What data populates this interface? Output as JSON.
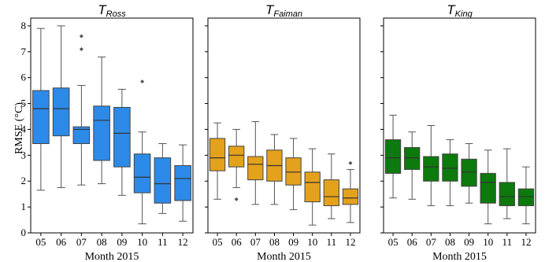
{
  "figure": {
    "y_axis_label": "RMSE (°C)",
    "x_axis_label": "Month 2015"
  },
  "chart_data": [
    {
      "type": "box",
      "title_main": "T",
      "title_sub": "Ross",
      "color": "#2d8ae8",
      "categories": [
        "05",
        "06",
        "07",
        "08",
        "09",
        "10",
        "11",
        "12"
      ],
      "ylim": [
        0,
        8.3
      ],
      "yticks": [
        0,
        1,
        2,
        3,
        4,
        5,
        6,
        7,
        8
      ],
      "boxes": [
        {
          "whisker_low": 1.65,
          "q1": 3.45,
          "median": 4.8,
          "q3": 5.5,
          "whisker_high": 7.9,
          "outliers": []
        },
        {
          "whisker_low": 1.75,
          "q1": 3.75,
          "median": 4.8,
          "q3": 5.6,
          "whisker_high": 8.0,
          "outliers": []
        },
        {
          "whisker_low": 1.85,
          "q1": 3.45,
          "median": 4.0,
          "q3": 4.1,
          "whisker_high": 5.7,
          "outliers": [
            7.1,
            7.6
          ]
        },
        {
          "whisker_low": 1.9,
          "q1": 2.8,
          "median": 4.35,
          "q3": 4.9,
          "whisker_high": 6.8,
          "outliers": []
        },
        {
          "whisker_low": 1.45,
          "q1": 2.55,
          "median": 3.85,
          "q3": 4.85,
          "whisker_high": 5.55,
          "outliers": []
        },
        {
          "whisker_low": 0.35,
          "q1": 1.55,
          "median": 2.15,
          "q3": 3.05,
          "whisker_high": 3.9,
          "outliers": [
            5.85
          ]
        },
        {
          "whisker_low": 0.75,
          "q1": 1.15,
          "median": 1.9,
          "q3": 2.9,
          "whisker_high": 3.45,
          "outliers": []
        },
        {
          "whisker_low": 0.45,
          "q1": 1.25,
          "median": 2.1,
          "q3": 2.6,
          "whisker_high": 3.4,
          "outliers": []
        }
      ]
    },
    {
      "type": "box",
      "title_main": "T",
      "title_sub": "Faiman",
      "color": "#e4a11b",
      "categories": [
        "05",
        "06",
        "07",
        "08",
        "09",
        "10",
        "11",
        "12"
      ],
      "ylim": [
        0,
        8.3
      ],
      "yticks": [
        0,
        1,
        2,
        3,
        4,
        5,
        6,
        7,
        8
      ],
      "boxes": [
        {
          "whisker_low": 1.3,
          "q1": 2.4,
          "median": 2.9,
          "q3": 3.65,
          "whisker_high": 4.25,
          "outliers": []
        },
        {
          "whisker_low": 1.75,
          "q1": 2.55,
          "median": 3.0,
          "q3": 3.35,
          "whisker_high": 4.0,
          "outliers": [
            1.3
          ]
        },
        {
          "whisker_low": 1.1,
          "q1": 2.05,
          "median": 2.65,
          "q3": 2.95,
          "whisker_high": 4.3,
          "outliers": []
        },
        {
          "whisker_low": 1.1,
          "q1": 2.0,
          "median": 2.6,
          "q3": 3.2,
          "whisker_high": 3.8,
          "outliers": []
        },
        {
          "whisker_low": 0.9,
          "q1": 1.85,
          "median": 2.35,
          "q3": 2.9,
          "whisker_high": 3.65,
          "outliers": []
        },
        {
          "whisker_low": 0.3,
          "q1": 1.2,
          "median": 1.95,
          "q3": 2.35,
          "whisker_high": 3.25,
          "outliers": []
        },
        {
          "whisker_low": 0.55,
          "q1": 1.05,
          "median": 1.4,
          "q3": 2.05,
          "whisker_high": 3.05,
          "outliers": []
        },
        {
          "whisker_low": 0.4,
          "q1": 1.1,
          "median": 1.35,
          "q3": 1.7,
          "whisker_high": 2.45,
          "outliers": [
            2.7
          ]
        }
      ]
    },
    {
      "type": "box",
      "title_main": "T",
      "title_sub": "King",
      "color": "#0c7a0c",
      "categories": [
        "05",
        "06",
        "07",
        "08",
        "09",
        "10",
        "11",
        "12"
      ],
      "ylim": [
        0,
        8.3
      ],
      "yticks": [
        0,
        1,
        2,
        3,
        4,
        5,
        6,
        7,
        8
      ],
      "boxes": [
        {
          "whisker_low": 1.35,
          "q1": 2.3,
          "median": 2.9,
          "q3": 3.6,
          "whisker_high": 4.55,
          "outliers": []
        },
        {
          "whisker_low": 1.3,
          "q1": 2.45,
          "median": 2.9,
          "q3": 3.3,
          "whisker_high": 3.9,
          "outliers": []
        },
        {
          "whisker_low": 1.05,
          "q1": 2.0,
          "median": 2.55,
          "q3": 2.95,
          "whisker_high": 4.15,
          "outliers": []
        },
        {
          "whisker_low": 1.05,
          "q1": 2.0,
          "median": 2.5,
          "q3": 3.05,
          "whisker_high": 3.6,
          "outliers": []
        },
        {
          "whisker_low": 1.15,
          "q1": 1.8,
          "median": 2.35,
          "q3": 2.85,
          "whisker_high": 3.45,
          "outliers": []
        },
        {
          "whisker_low": 0.35,
          "q1": 1.15,
          "median": 1.95,
          "q3": 2.3,
          "whisker_high": 3.2,
          "outliers": []
        },
        {
          "whisker_low": 0.55,
          "q1": 1.05,
          "median": 1.4,
          "q3": 1.95,
          "whisker_high": 3.25,
          "outliers": []
        },
        {
          "whisker_low": 0.35,
          "q1": 1.05,
          "median": 1.4,
          "q3": 1.7,
          "whisker_high": 2.55,
          "outliers": []
        }
      ]
    }
  ]
}
